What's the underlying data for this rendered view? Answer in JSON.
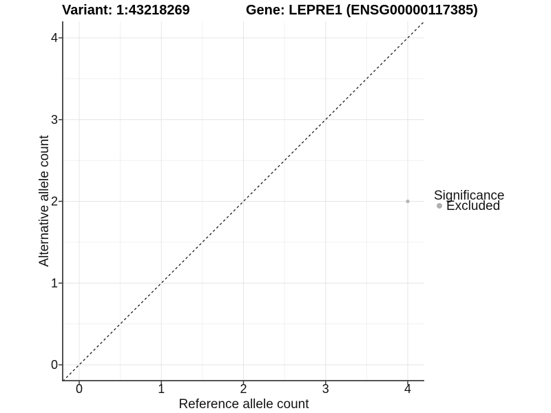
{
  "figure": {
    "title_left": "Variant: 1:43218269",
    "title_right": "Gene: LEPRE1 (ENSG00000117385)"
  },
  "chart_data": {
    "type": "scatter",
    "title_left": "Variant: 1:43218269",
    "title_right": "Gene: LEPRE1 (ENSG00000117385)",
    "xlabel": "Reference allele count",
    "ylabel": "Alternative allele count",
    "xlim": [
      -0.2,
      4.2
    ],
    "ylim": [
      -0.2,
      4.2
    ],
    "x_ticks": [
      0,
      1,
      2,
      3,
      4
    ],
    "y_ticks": [
      0,
      1,
      2,
      3,
      4
    ],
    "grid": {
      "major": true,
      "minor": true,
      "major_color": "#e4e4e4",
      "minor_color": "#f1f1f1"
    },
    "axis_line_color": "#3c3c3c",
    "reference_line": {
      "type": "identity",
      "equation": "y = x",
      "style": "dashed",
      "color": "#1a1a1a",
      "from": [
        -0.2,
        -0.2
      ],
      "to": [
        4.2,
        4.2
      ]
    },
    "series": [
      {
        "name": "Excluded",
        "color": "#b5b5b5",
        "points": [
          {
            "x": 4,
            "y": 2
          }
        ]
      }
    ],
    "legend": {
      "title": "Significance",
      "position": "right",
      "entries": [
        {
          "label": "Excluded",
          "color": "#b0b0b0"
        }
      ]
    }
  }
}
